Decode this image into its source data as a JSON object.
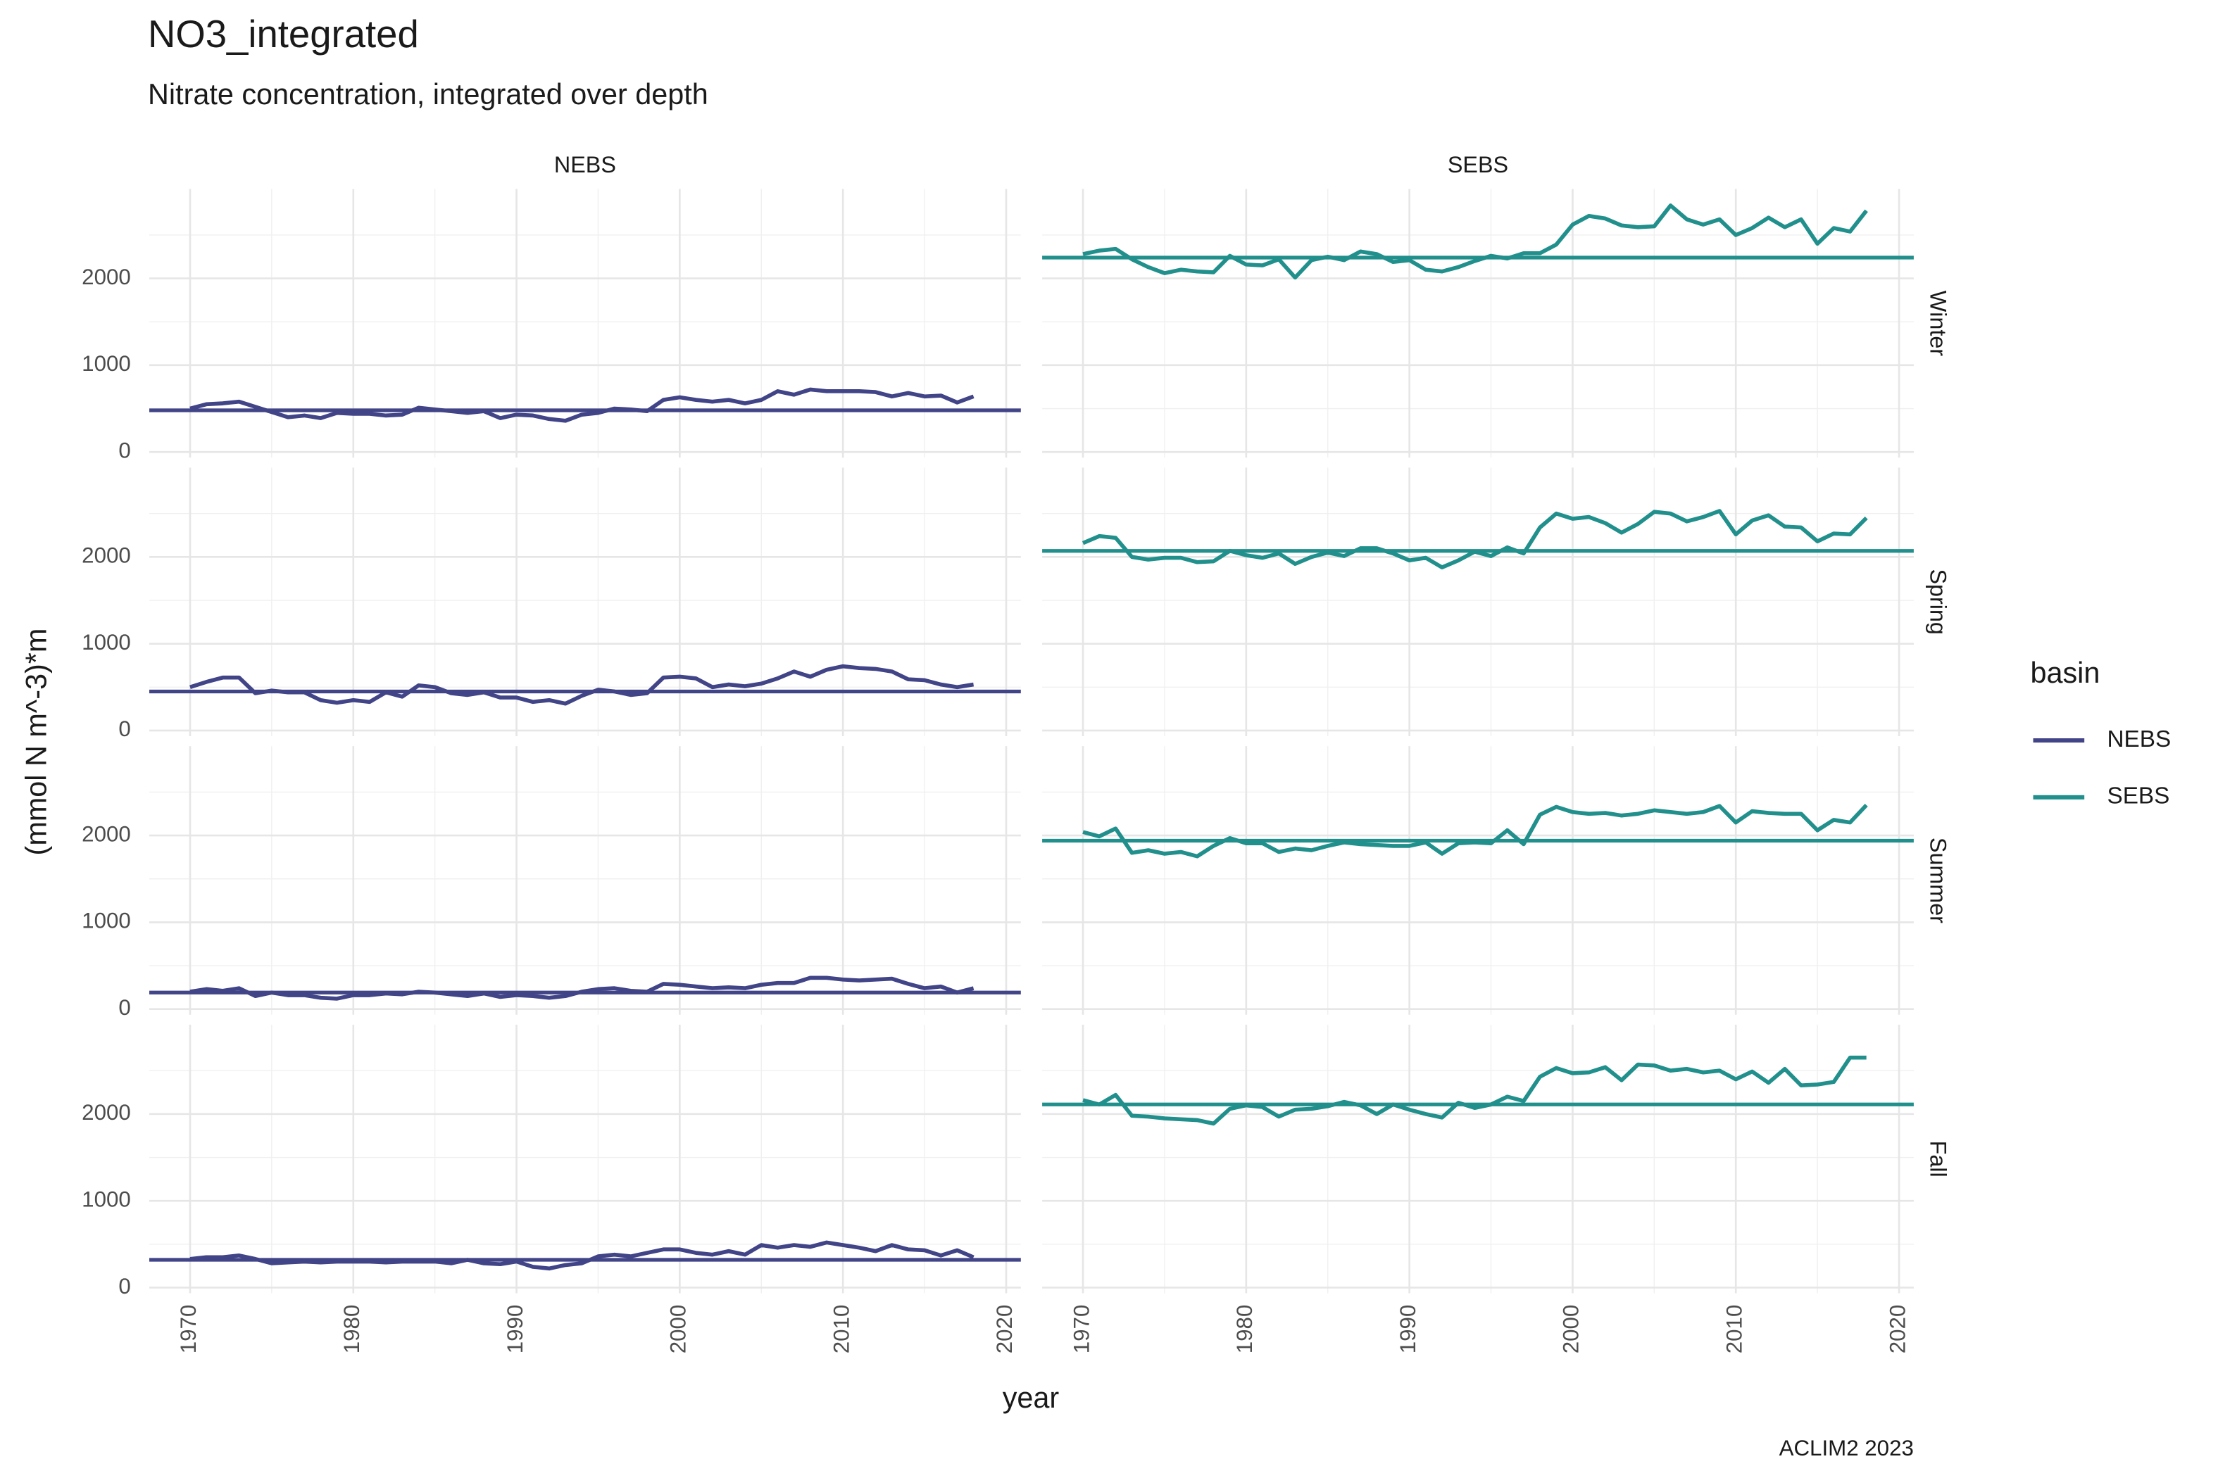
{
  "chart_data": {
    "type": "line",
    "title": "NO3_integrated",
    "subtitle": "Nitrate concentration, integrated over depth",
    "x_label": "year",
    "y_label": "(mmol N m^-3)*m",
    "caption": "ACLIM2 2023",
    "legend_title": "basin",
    "columns": [
      "NEBS",
      "SEBS"
    ],
    "rows": [
      "Winter",
      "Spring",
      "Summer",
      "Fall"
    ],
    "x": [
      1970,
      1971,
      1972,
      1973,
      1974,
      1975,
      1976,
      1977,
      1978,
      1979,
      1980,
      1981,
      1982,
      1983,
      1984,
      1985,
      1986,
      1987,
      1988,
      1989,
      1990,
      1991,
      1992,
      1993,
      1994,
      1995,
      1996,
      1997,
      1998,
      1999,
      2000,
      2001,
      2002,
      2003,
      2004,
      2005,
      2006,
      2007,
      2008,
      2009,
      2010,
      2011,
      2012,
      2013,
      2014,
      2015,
      2016,
      2017,
      2018
    ],
    "xlim": [
      1967.5,
      2020.9
    ],
    "xticks": [
      1970,
      1980,
      1990,
      2000,
      2010,
      2020
    ],
    "xminor": [
      1975,
      1985,
      1995,
      2005,
      2015
    ],
    "ylim": [
      -65,
      3030
    ],
    "yticks": [
      0,
      1000,
      2000
    ],
    "yminor": [
      500,
      1500,
      2500
    ],
    "grid": true,
    "series": [
      {
        "name": "NEBS",
        "color": "#414487",
        "panels": [
          {
            "mean": 480,
            "values": [
              500,
              550,
              560,
              580,
              520,
              460,
              400,
              420,
              390,
              450,
              440,
              440,
              420,
              430,
              510,
              490,
              470,
              450,
              470,
              390,
              430,
              420,
              380,
              360,
              430,
              450,
              500,
              490,
              470,
              600,
              630,
              600,
              580,
              600,
              560,
              600,
              700,
              660,
              720,
              700,
              700,
              700,
              690,
              640,
              680,
              640,
              650,
              570,
              640
            ]
          },
          {
            "mean": 450,
            "values": [
              500,
              560,
              610,
              610,
              430,
              460,
              440,
              440,
              350,
              320,
              350,
              330,
              440,
              390,
              520,
              500,
              430,
              410,
              440,
              380,
              380,
              330,
              350,
              310,
              400,
              470,
              450,
              410,
              430,
              610,
              620,
              600,
              500,
              530,
              510,
              540,
              600,
              680,
              620,
              700,
              740,
              720,
              710,
              680,
              590,
              580,
              530,
              500,
              530
            ]
          },
          {
            "mean": 190,
            "values": [
              200,
              230,
              210,
              240,
              150,
              190,
              160,
              160,
              130,
              120,
              160,
              160,
              180,
              170,
              200,
              190,
              170,
              150,
              180,
              140,
              160,
              150,
              130,
              150,
              200,
              230,
              240,
              210,
              200,
              290,
              280,
              260,
              240,
              250,
              240,
              280,
              300,
              300,
              360,
              360,
              340,
              330,
              340,
              350,
              290,
              240,
              260,
              190,
              240
            ]
          },
          {
            "mean": 320,
            "values": [
              330,
              350,
              350,
              370,
              330,
              280,
              290,
              300,
              290,
              300,
              300,
              300,
              290,
              300,
              300,
              300,
              280,
              320,
              280,
              270,
              300,
              240,
              220,
              260,
              280,
              360,
              380,
              360,
              400,
              440,
              440,
              400,
              380,
              420,
              380,
              490,
              460,
              490,
              470,
              520,
              490,
              460,
              420,
              490,
              440,
              430,
              370,
              430,
              350
            ]
          }
        ]
      },
      {
        "name": "SEBS",
        "color": "#21908C",
        "panels": [
          {
            "mean": 2240,
            "values": [
              2280,
              2320,
              2340,
              2220,
              2130,
              2060,
              2100,
              2080,
              2070,
              2260,
              2160,
              2150,
              2220,
              2010,
              2210,
              2250,
              2210,
              2310,
              2280,
              2190,
              2210,
              2100,
              2080,
              2130,
              2200,
              2260,
              2230,
              2290,
              2290,
              2390,
              2620,
              2720,
              2690,
              2610,
              2590,
              2600,
              2840,
              2680,
              2620,
              2680,
              2500,
              2580,
              2700,
              2590,
              2680,
              2400,
              2580,
              2540,
              2780
            ]
          },
          {
            "mean": 2070,
            "values": [
              2160,
              2240,
              2220,
              2000,
              1970,
              1990,
              1990,
              1940,
              1950,
              2070,
              2020,
              1990,
              2040,
              1920,
              2000,
              2050,
              2010,
              2100,
              2100,
              2040,
              1960,
              1990,
              1880,
              1960,
              2060,
              2010,
              2110,
              2040,
              2340,
              2500,
              2440,
              2460,
              2390,
              2280,
              2380,
              2520,
              2500,
              2410,
              2460,
              2530,
              2260,
              2420,
              2480,
              2350,
              2340,
              2180,
              2270,
              2260,
              2450
            ]
          },
          {
            "mean": 1940,
            "values": [
              2040,
              1990,
              2080,
              1800,
              1830,
              1790,
              1810,
              1760,
              1880,
              1970,
              1910,
              1910,
              1810,
              1850,
              1830,
              1880,
              1920,
              1900,
              1890,
              1880,
              1880,
              1920,
              1790,
              1910,
              1920,
              1910,
              2060,
              1900,
              2240,
              2330,
              2270,
              2250,
              2260,
              2230,
              2250,
              2290,
              2270,
              2250,
              2270,
              2340,
              2150,
              2280,
              2260,
              2250,
              2250,
              2060,
              2180,
              2150,
              2350
            ]
          },
          {
            "mean": 2110,
            "values": [
              2160,
              2110,
              2220,
              1980,
              1970,
              1950,
              1940,
              1930,
              1890,
              2060,
              2100,
              2080,
              1970,
              2050,
              2060,
              2090,
              2140,
              2100,
              2000,
              2110,
              2050,
              2000,
              1960,
              2130,
              2070,
              2110,
              2200,
              2150,
              2430,
              2530,
              2470,
              2480,
              2540,
              2390,
              2570,
              2560,
              2500,
              2520,
              2480,
              2500,
              2400,
              2490,
              2360,
              2520,
              2330,
              2340,
              2370,
              2650,
              2650
            ]
          }
        ]
      }
    ]
  }
}
